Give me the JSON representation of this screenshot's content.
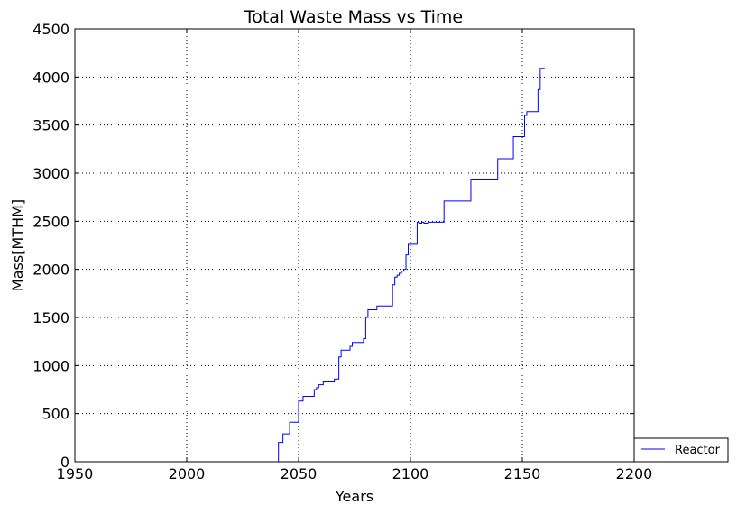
{
  "chart_data": {
    "type": "line",
    "title": "Total Waste Mass vs Time",
    "xlabel": "Years",
    "ylabel": "Mass[MTHM]",
    "xlim": [
      1950,
      2200
    ],
    "ylim": [
      0,
      4500
    ],
    "xticks": [
      "1950",
      "2000",
      "2050",
      "2100",
      "2150",
      "2200"
    ],
    "yticks": [
      "0",
      "500",
      "1000",
      "1500",
      "2000",
      "2500",
      "3000",
      "3500",
      "4000",
      "4500"
    ],
    "grid": true,
    "legend_position": "outside-bottom-right",
    "series": [
      {
        "name": "Reactor",
        "color": "#0000ff",
        "step": "post",
        "x": [
          1970,
          2041,
          2042,
          2043,
          2044,
          2046,
          2047,
          2050,
          2051,
          2052,
          2055,
          2057,
          2058,
          2059,
          2060,
          2061,
          2063,
          2066,
          2067,
          2068,
          2069,
          2070,
          2073,
          2074,
          2075,
          2076,
          2079,
          2080,
          2081,
          2082,
          2084,
          2085,
          2091,
          2092,
          2093,
          2094,
          2095,
          2096,
          2097,
          2098,
          2099,
          2100,
          2103,
          2104,
          2105,
          2106,
          2108,
          2114,
          2115,
          2126,
          2127,
          2138,
          2139,
          2145,
          2146,
          2150,
          2151,
          2152,
          2156,
          2157,
          2158,
          2160
        ],
        "y": [
          0,
          200,
          200,
          290,
          290,
          410,
          410,
          630,
          630,
          680,
          680,
          750,
          770,
          800,
          800,
          830,
          830,
          860,
          860,
          1090,
          1160,
          1160,
          1200,
          1240,
          1240,
          1240,
          1280,
          1500,
          1580,
          1580,
          1580,
          1620,
          1620,
          1840,
          1920,
          1940,
          1960,
          1980,
          2000,
          2150,
          2260,
          2260,
          2490,
          2480,
          2490,
          2480,
          2490,
          2490,
          2710,
          2710,
          2930,
          2930,
          3150,
          3150,
          3380,
          3380,
          3600,
          3640,
          3640,
          3870,
          4090,
          4090
        ]
      }
    ]
  }
}
